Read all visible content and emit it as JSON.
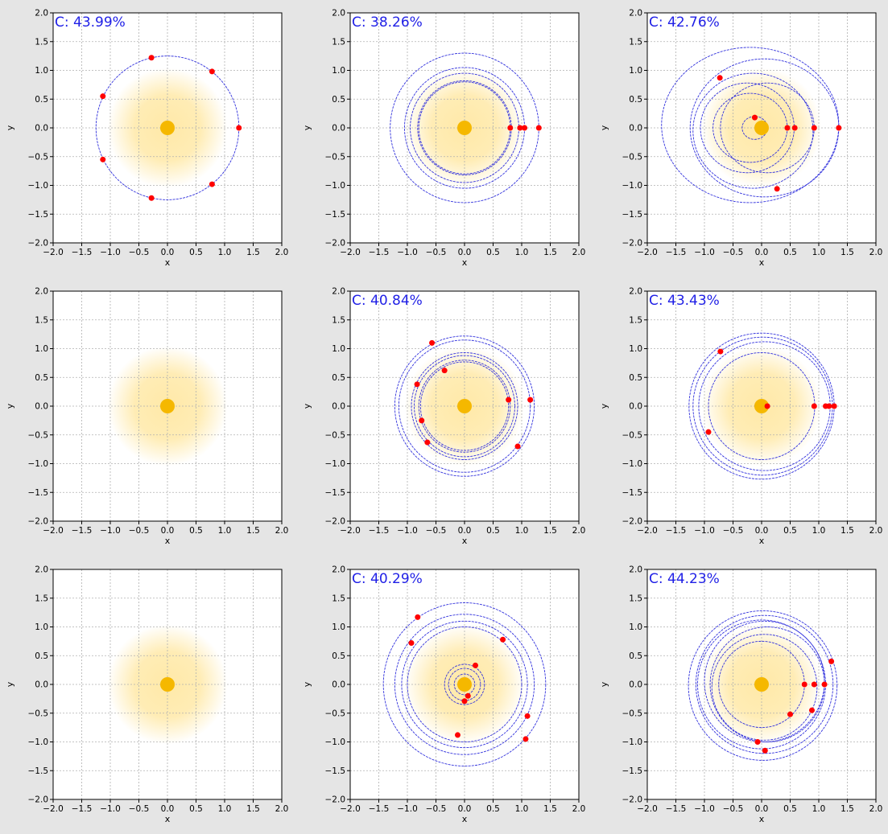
{
  "figure": {
    "rows": 3,
    "cols": 3,
    "colors": {
      "background": "#e5e5e5",
      "orbit": "#3333dd",
      "planet": "#ff0000",
      "sun": "#f5b800",
      "glow": "#ffe9a8",
      "annotation": "#1f1fe6"
    }
  },
  "chart_data": [
    {
      "type": "scatter",
      "annotation": "C: 43.99%",
      "xlabel": "x",
      "ylabel": "y",
      "xlim": [
        -2,
        2
      ],
      "ylim": [
        -2,
        2
      ],
      "xticks": [
        "−2.0",
        "−1.5",
        "−1.0",
        "−0.5",
        "0.0",
        "0.5",
        "1.0",
        "1.5",
        "2.0"
      ],
      "yticks": [
        "−2.0",
        "−1.5",
        "−1.0",
        "−0.5",
        "0.0",
        "0.5",
        "1.0",
        "1.5",
        "2.0"
      ],
      "grid": true,
      "sun": [
        0,
        0
      ],
      "orbits": [
        {
          "cx": 0,
          "cy": 0,
          "rx": 1.25,
          "ry": 1.25
        }
      ],
      "planets": [
        [
          1.25,
          0
        ],
        [
          0.78,
          0.98
        ],
        [
          -0.28,
          1.22
        ],
        [
          -1.13,
          0.55
        ],
        [
          -1.13,
          -0.55
        ],
        [
          -0.28,
          -1.22
        ],
        [
          0.78,
          -0.98
        ]
      ]
    },
    {
      "type": "scatter",
      "annotation": "C: 38.26%",
      "xlabel": "x",
      "ylabel": "y",
      "xlim": [
        -2,
        2
      ],
      "ylim": [
        -2,
        2
      ],
      "xticks": [
        "−2.0",
        "−1.5",
        "−1.0",
        "−0.5",
        "0.0",
        "0.5",
        "1.0",
        "1.5",
        "2.0"
      ],
      "yticks": [
        "−2.0",
        "−1.5",
        "−1.0",
        "−0.5",
        "0.0",
        "0.5",
        "1.0",
        "1.5",
        "2.0"
      ],
      "grid": true,
      "sun": [
        0,
        0
      ],
      "orbits": [
        {
          "cx": 0,
          "cy": 0,
          "rx": 0.8,
          "ry": 0.8
        },
        {
          "cx": 0,
          "cy": 0,
          "rx": 0.82,
          "ry": 0.82
        },
        {
          "cx": 0,
          "cy": 0,
          "rx": 0.95,
          "ry": 0.95
        },
        {
          "cx": 0,
          "cy": 0,
          "rx": 1.05,
          "ry": 1.05
        },
        {
          "cx": 0,
          "cy": 0,
          "rx": 1.3,
          "ry": 1.3
        }
      ],
      "planets": [
        [
          0.8,
          0
        ],
        [
          0.97,
          0
        ],
        [
          1.05,
          0
        ],
        [
          1.3,
          0
        ]
      ]
    },
    {
      "type": "scatter",
      "annotation": "C: 42.76%",
      "xlabel": "x",
      "ylabel": "y",
      "xlim": [
        -2,
        2
      ],
      "ylim": [
        -2,
        2
      ],
      "xticks": [
        "−2.0",
        "−1.5",
        "−1.0",
        "−0.5",
        "0.0",
        "0.5",
        "1.0",
        "1.5",
        "2.0"
      ],
      "yticks": [
        "−2.0",
        "−1.5",
        "−1.0",
        "−0.5",
        "0.0",
        "0.5",
        "1.0",
        "1.5",
        "2.0"
      ],
      "grid": true,
      "sun": [
        0,
        0
      ],
      "orbits": [
        {
          "cx": -0.12,
          "cy": 0,
          "rx": 0.22,
          "ry": 0.2
        },
        {
          "cx": -0.2,
          "cy": 0,
          "rx": 0.65,
          "ry": 0.6
        },
        {
          "cx": -0.25,
          "cy": 0,
          "rx": 0.82,
          "ry": 0.78
        },
        {
          "cx": 0.1,
          "cy": 0,
          "rx": 0.82,
          "ry": 0.78
        },
        {
          "cx": -0.15,
          "cy": -0.05,
          "rx": 1.05,
          "ry": 1.0
        },
        {
          "cx": -0.2,
          "cy": 0.05,
          "rx": 1.55,
          "ry": 1.35
        },
        {
          "cx": 0.05,
          "cy": 0,
          "rx": 1.3,
          "ry": 1.2
        }
      ],
      "planets": [
        [
          -0.73,
          0.87
        ],
        [
          -0.12,
          0.18
        ],
        [
          0.45,
          0
        ],
        [
          0.58,
          0
        ],
        [
          0.92,
          0
        ],
        [
          1.35,
          0
        ],
        [
          0.27,
          -1.06
        ]
      ]
    },
    {
      "type": "scatter",
      "annotation": "",
      "xlabel": "x",
      "ylabel": "y",
      "xlim": [
        -2,
        2
      ],
      "ylim": [
        -2,
        2
      ],
      "xticks": [
        "−2.0",
        "−1.5",
        "−1.0",
        "−0.5",
        "0.0",
        "0.5",
        "1.0",
        "1.5",
        "2.0"
      ],
      "yticks": [
        "−2.0",
        "−1.5",
        "−1.0",
        "−0.5",
        "0.0",
        "0.5",
        "1.0",
        "1.5",
        "2.0"
      ],
      "grid": true,
      "sun": [
        0,
        0
      ],
      "orbits": [],
      "planets": []
    },
    {
      "type": "scatter",
      "annotation": "C: 40.84%",
      "xlabel": "x",
      "ylabel": "y",
      "xlim": [
        -2,
        2
      ],
      "ylim": [
        -2,
        2
      ],
      "xticks": [
        "−2.0",
        "−1.5",
        "−1.0",
        "−0.5",
        "0.0",
        "0.5",
        "1.0",
        "1.5",
        "2.0"
      ],
      "yticks": [
        "−2.0",
        "−1.5",
        "−1.0",
        "−0.5",
        "0.0",
        "0.5",
        "1.0",
        "1.5",
        "2.0"
      ],
      "grid": true,
      "sun": [
        0,
        0
      ],
      "orbits": [
        {
          "cx": 0,
          "cy": 0,
          "rx": 0.77,
          "ry": 0.77
        },
        {
          "cx": 0,
          "cy": 0,
          "rx": 0.8,
          "ry": 0.8
        },
        {
          "cx": 0,
          "cy": 0,
          "rx": 0.88,
          "ry": 0.88
        },
        {
          "cx": 0,
          "cy": 0,
          "rx": 0.93,
          "ry": 0.93
        },
        {
          "cx": 0,
          "cy": 0,
          "rx": 1.15,
          "ry": 1.15
        },
        {
          "cx": 0,
          "cy": 0,
          "rx": 1.22,
          "ry": 1.22
        }
      ],
      "planets": [
        [
          -0.57,
          1.1
        ],
        [
          -0.35,
          0.62
        ],
        [
          -0.83,
          0.38
        ],
        [
          0.77,
          0.11
        ],
        [
          1.15,
          0.11
        ],
        [
          -0.75,
          -0.25
        ],
        [
          -0.65,
          -0.63
        ],
        [
          0.93,
          -0.7
        ]
      ]
    },
    {
      "type": "scatter",
      "annotation": "C: 43.43%",
      "xlabel": "x",
      "ylabel": "y",
      "xlim": [
        -2,
        2
      ],
      "ylim": [
        -2,
        2
      ],
      "xticks": [
        "−2.0",
        "−1.5",
        "−1.0",
        "−0.5",
        "0.0",
        "0.5",
        "1.0",
        "1.5",
        "2.0"
      ],
      "yticks": [
        "−2.0",
        "−1.5",
        "−1.0",
        "−0.5",
        "0.0",
        "0.5",
        "1.0",
        "1.5",
        "2.0"
      ],
      "grid": true,
      "sun": [
        0,
        0
      ],
      "orbits": [
        {
          "cx": 0,
          "cy": 0,
          "rx": 0.06,
          "ry": 0.06
        },
        {
          "cx": -0.02,
          "cy": 0,
          "rx": 0.1,
          "ry": 0.1
        },
        {
          "cx": 0,
          "cy": 0,
          "rx": 0.93,
          "ry": 0.93
        },
        {
          "cx": 0.05,
          "cy": 0,
          "rx": 1.15,
          "ry": 1.12
        },
        {
          "cx": 0.02,
          "cy": 0,
          "rx": 1.22,
          "ry": 1.2
        },
        {
          "cx": 0,
          "cy": 0,
          "rx": 1.27,
          "ry": 1.27
        }
      ],
      "planets": [
        [
          -0.72,
          0.95
        ],
        [
          0.1,
          0
        ],
        [
          0.92,
          0
        ],
        [
          1.12,
          0
        ],
        [
          1.18,
          0
        ],
        [
          1.27,
          0
        ],
        [
          -0.93,
          -0.45
        ]
      ]
    },
    {
      "type": "scatter",
      "annotation": "",
      "xlabel": "x",
      "ylabel": "y",
      "xlim": [
        -2,
        2
      ],
      "ylim": [
        -2,
        2
      ],
      "xticks": [
        "−2.0",
        "−1.5",
        "−1.0",
        "−0.5",
        "0.0",
        "0.5",
        "1.0",
        "1.5",
        "2.0"
      ],
      "yticks": [
        "−2.0",
        "−1.5",
        "−1.0",
        "−0.5",
        "0.0",
        "0.5",
        "1.0",
        "1.5",
        "2.0"
      ],
      "grid": true,
      "sun": [
        0,
        0
      ],
      "orbits": [],
      "planets": []
    },
    {
      "type": "scatter",
      "annotation": "C: 40.29%",
      "xlabel": "x",
      "ylabel": "y",
      "xlim": [
        -2,
        2
      ],
      "ylim": [
        -2,
        2
      ],
      "xticks": [
        "−2.0",
        "−1.5",
        "−1.0",
        "−0.5",
        "0.0",
        "0.5",
        "1.0",
        "1.5",
        "2.0"
      ],
      "yticks": [
        "−2.0",
        "−1.5",
        "−1.0",
        "−0.5",
        "0.0",
        "0.5",
        "1.0",
        "1.5",
        "2.0"
      ],
      "grid": true,
      "sun": [
        0,
        0
      ],
      "orbits": [
        {
          "cx": 0,
          "cy": 0,
          "rx": 0.18,
          "ry": 0.18
        },
        {
          "cx": 0,
          "cy": 0,
          "rx": 0.28,
          "ry": 0.28
        },
        {
          "cx": 0,
          "cy": 0,
          "rx": 0.35,
          "ry": 0.35
        },
        {
          "cx": 0,
          "cy": 0,
          "rx": 1.0,
          "ry": 1.0
        },
        {
          "cx": 0,
          "cy": 0,
          "rx": 1.1,
          "ry": 1.1
        },
        {
          "cx": 0,
          "cy": 0,
          "rx": 1.22,
          "ry": 1.22
        },
        {
          "cx": 0,
          "cy": 0,
          "rx": 1.42,
          "ry": 1.42
        }
      ],
      "planets": [
        [
          -0.82,
          1.17
        ],
        [
          -0.93,
          0.72
        ],
        [
          0.67,
          0.78
        ],
        [
          0.19,
          0.33
        ],
        [
          0.06,
          -0.2
        ],
        [
          0.0,
          -0.29
        ],
        [
          1.1,
          -0.55
        ],
        [
          -0.12,
          -0.88
        ],
        [
          1.07,
          -0.95
        ]
      ]
    },
    {
      "type": "scatter",
      "annotation": "C: 44.23%",
      "xlabel": "x",
      "ylabel": "y",
      "xlim": [
        -2,
        2
      ],
      "ylim": [
        -2,
        2
      ],
      "xticks": [
        "−2.0",
        "−1.5",
        "−1.0",
        "−0.5",
        "0.0",
        "0.5",
        "1.0",
        "1.5",
        "2.0"
      ],
      "yticks": [
        "−2.0",
        "−1.5",
        "−1.0",
        "−0.5",
        "0.0",
        "0.5",
        "1.0",
        "1.5",
        "2.0"
      ],
      "grid": true,
      "sun": [
        0,
        0
      ],
      "orbits": [
        {
          "cx": 0,
          "cy": 0,
          "rx": 0.75,
          "ry": 0.75
        },
        {
          "cx": 0.05,
          "cy": -0.05,
          "rx": 0.92,
          "ry": 0.92
        },
        {
          "cx": 0.1,
          "cy": 0,
          "rx": 1.0,
          "ry": 1.0
        },
        {
          "cx": 0.05,
          "cy": 0.05,
          "rx": 1.05,
          "ry": 1.05
        },
        {
          "cx": 0,
          "cy": 0,
          "rx": 1.12,
          "ry": 1.12
        },
        {
          "cx": 0.05,
          "cy": 0,
          "rx": 1.2,
          "ry": 1.2
        },
        {
          "cx": 0.02,
          "cy": -0.02,
          "rx": 1.3,
          "ry": 1.3
        }
      ],
      "planets": [
        [
          1.22,
          0.4
        ],
        [
          0.75,
          0
        ],
        [
          0.92,
          0
        ],
        [
          1.1,
          0
        ],
        [
          0.5,
          -0.52
        ],
        [
          0.88,
          -0.45
        ],
        [
          -0.07,
          -1.0
        ],
        [
          0.06,
          -1.15
        ]
      ]
    }
  ]
}
